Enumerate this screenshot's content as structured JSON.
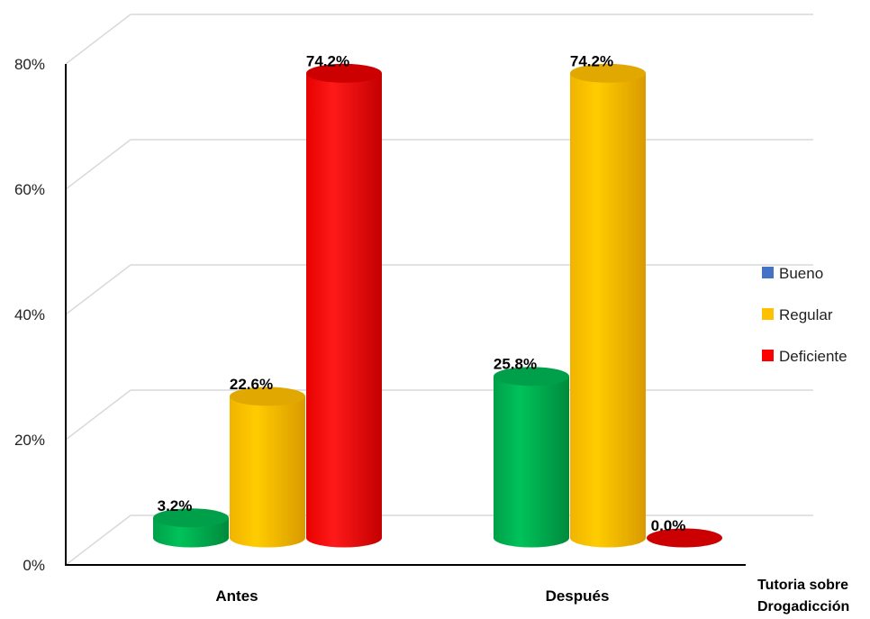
{
  "chart_data": {
    "type": "bar",
    "style": "3d-cylinder",
    "categories": [
      "Antes",
      "Después"
    ],
    "series": [
      {
        "name": "Bueno",
        "color": "#00b050",
        "legend_color": "#4472c4",
        "values": [
          3.2,
          25.8
        ],
        "labels": [
          "3.2%",
          "25.8%"
        ]
      },
      {
        "name": "Regular",
        "color": "#ffc000",
        "legend_color": "#ffc000",
        "values": [
          22.6,
          74.2
        ],
        "labels": [
          "22.6%",
          "74.2%"
        ]
      },
      {
        "name": "Deficiente",
        "color": "#ff0000",
        "legend_color": "#ff0000",
        "values": [
          74.2,
          0.0
        ],
        "labels": [
          "74.2%",
          "0.0%"
        ]
      }
    ],
    "ylim": [
      0,
      80
    ],
    "yticks": [
      "0%",
      "20%",
      "40%",
      "60%",
      "80%"
    ],
    "xlabel_lines": [
      "Tutoria sobre",
      "Drogadicción"
    ],
    "grid": true,
    "legend_position": "right"
  }
}
